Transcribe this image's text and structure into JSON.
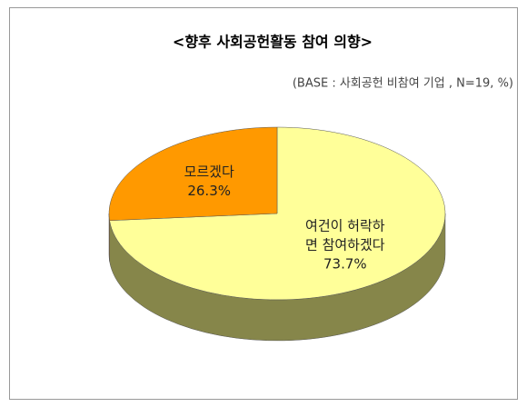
{
  "chart_data": {
    "type": "pie3d",
    "title": "<향후 사회공헌활동 참여 의향>",
    "subtitle": "(BASE : 사회공헌 비참여 기업 , N=19, %)",
    "categories": [
      "여건이 허락하면 참여하겠다",
      "모르겠다"
    ],
    "values": [
      73.7,
      26.3
    ],
    "value_labels": [
      "73.7%",
      "26.3%"
    ],
    "colors": [
      "#ffff99",
      "#ff9900"
    ],
    "side_colors": [
      "#86864a",
      "#a86400"
    ]
  }
}
